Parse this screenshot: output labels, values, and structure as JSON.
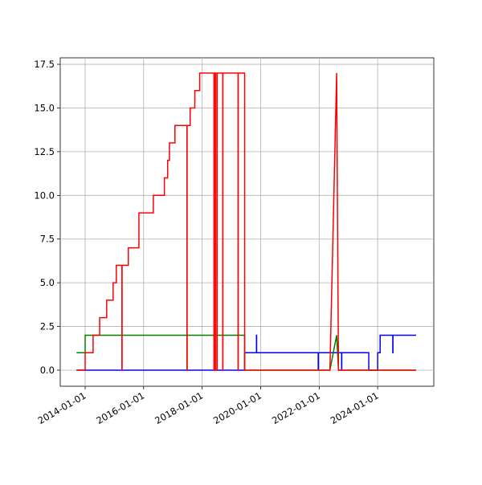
{
  "chart_data": {
    "type": "line",
    "grid": true,
    "xlim": [
      "2013-02-24",
      "2025-12-02"
    ],
    "ylim": [
      -0.92,
      17.87
    ],
    "xticks": [
      "2014-01-01",
      "2016-01-01",
      "2018-01-01",
      "2020-01-01",
      "2022-01-01",
      "2024-01-01"
    ],
    "yticks": [
      {
        "value": 0,
        "label": "0.0"
      },
      {
        "value": 2.5,
        "label": "2.5"
      },
      {
        "value": 5,
        "label": "5.0"
      },
      {
        "value": 7.5,
        "label": "7.5"
      },
      {
        "value": 10,
        "label": "10.0"
      },
      {
        "value": 12.5,
        "label": "12.5"
      },
      {
        "value": 15,
        "label": "15.0"
      },
      {
        "value": 17.5,
        "label": "17.5"
      }
    ],
    "series": [
      {
        "color": "#0000ff",
        "x": [
          "2013-09-15",
          "2019-06-15",
          "2019-06-15",
          "2019-11-10",
          "2019-11-10",
          "2019-11-12",
          "2019-11-12",
          "2021-12-20",
          "2021-12-20",
          "2021-12-22",
          "2021-12-22",
          "2022-10-08",
          "2022-10-08",
          "2022-10-10",
          "2022-10-10",
          "2023-09-12",
          "2023-09-12",
          "2024-01-01",
          "2024-01-01",
          "2024-02-01",
          "2024-02-01",
          "2024-07-08",
          "2024-07-08",
          "2024-07-10",
          "2024-07-10",
          "2025-04-25"
        ],
        "values": [
          0,
          0,
          1,
          1,
          2,
          2,
          1,
          1,
          0,
          0,
          1,
          1,
          0,
          0,
          1,
          1,
          0,
          0,
          1,
          1,
          2,
          2,
          1,
          1,
          2,
          2
        ]
      },
      {
        "color": "#008000",
        "x": [
          "2013-09-15",
          "2014-01-01",
          "2014-01-01",
          "2017-06-25",
          "2017-06-25",
          "2017-06-27",
          "2017-06-27",
          "2019-06-15",
          "2019-06-15",
          "2022-05-15",
          "2022-08-07",
          "2022-08-30",
          "2025-04-25"
        ],
        "values": [
          1,
          1,
          2,
          2,
          0,
          0,
          2,
          2,
          0,
          0,
          2,
          0,
          0
        ]
      },
      {
        "color": "#ff0000",
        "x": [
          "2013-09-15",
          "2014-01-01",
          "2014-01-01",
          "2014-04-10",
          "2014-04-10",
          "2014-07-01",
          "2014-07-01",
          "2014-09-27",
          "2014-09-27",
          "2014-12-16",
          "2014-12-16",
          "2015-01-25",
          "2015-01-25",
          "2015-04-05",
          "2015-04-05",
          "2015-04-07",
          "2015-04-07",
          "2015-06-24",
          "2015-06-24",
          "2015-11-03",
          "2015-11-03",
          "2016-05-01",
          "2016-05-01",
          "2016-09-16",
          "2016-09-16",
          "2016-10-27",
          "2016-10-27",
          "2016-11-18",
          "2016-11-18",
          "2017-01-26",
          "2017-01-26",
          "2017-06-25",
          "2017-06-25",
          "2017-06-27",
          "2017-06-27",
          "2017-08-04",
          "2017-08-04",
          "2017-10-01",
          "2017-10-01",
          "2017-12-01",
          "2017-12-01",
          "2018-05-28",
          "2018-05-28",
          "2018-05-30",
          "2018-05-30",
          "2018-06-15",
          "2018-06-15",
          "2018-06-17",
          "2018-06-17",
          "2018-07-05",
          "2018-07-05",
          "2018-07-07",
          "2018-07-07",
          "2018-09-15",
          "2018-09-15",
          "2018-09-17",
          "2018-09-17",
          "2019-03-25",
          "2019-03-25",
          "2019-03-27",
          "2019-03-27",
          "2019-06-15",
          "2019-06-15",
          "2022-05-15",
          "2022-08-07",
          "2022-08-30",
          "2025-04-25"
        ],
        "values": [
          0,
          0,
          1,
          1,
          2,
          2,
          3,
          3,
          4,
          4,
          5,
          5,
          6,
          6,
          0,
          0,
          6,
          6,
          7,
          7,
          9,
          9,
          10,
          10,
          11,
          11,
          12,
          12,
          13,
          13,
          14,
          14,
          0,
          0,
          14,
          14,
          15,
          15,
          16,
          16,
          17,
          17,
          0,
          0,
          17,
          17,
          0,
          0,
          17,
          17,
          0,
          0,
          17,
          17,
          0,
          0,
          17,
          17,
          0,
          0,
          17,
          17,
          0,
          0,
          17,
          0,
          0
        ]
      }
    ]
  }
}
